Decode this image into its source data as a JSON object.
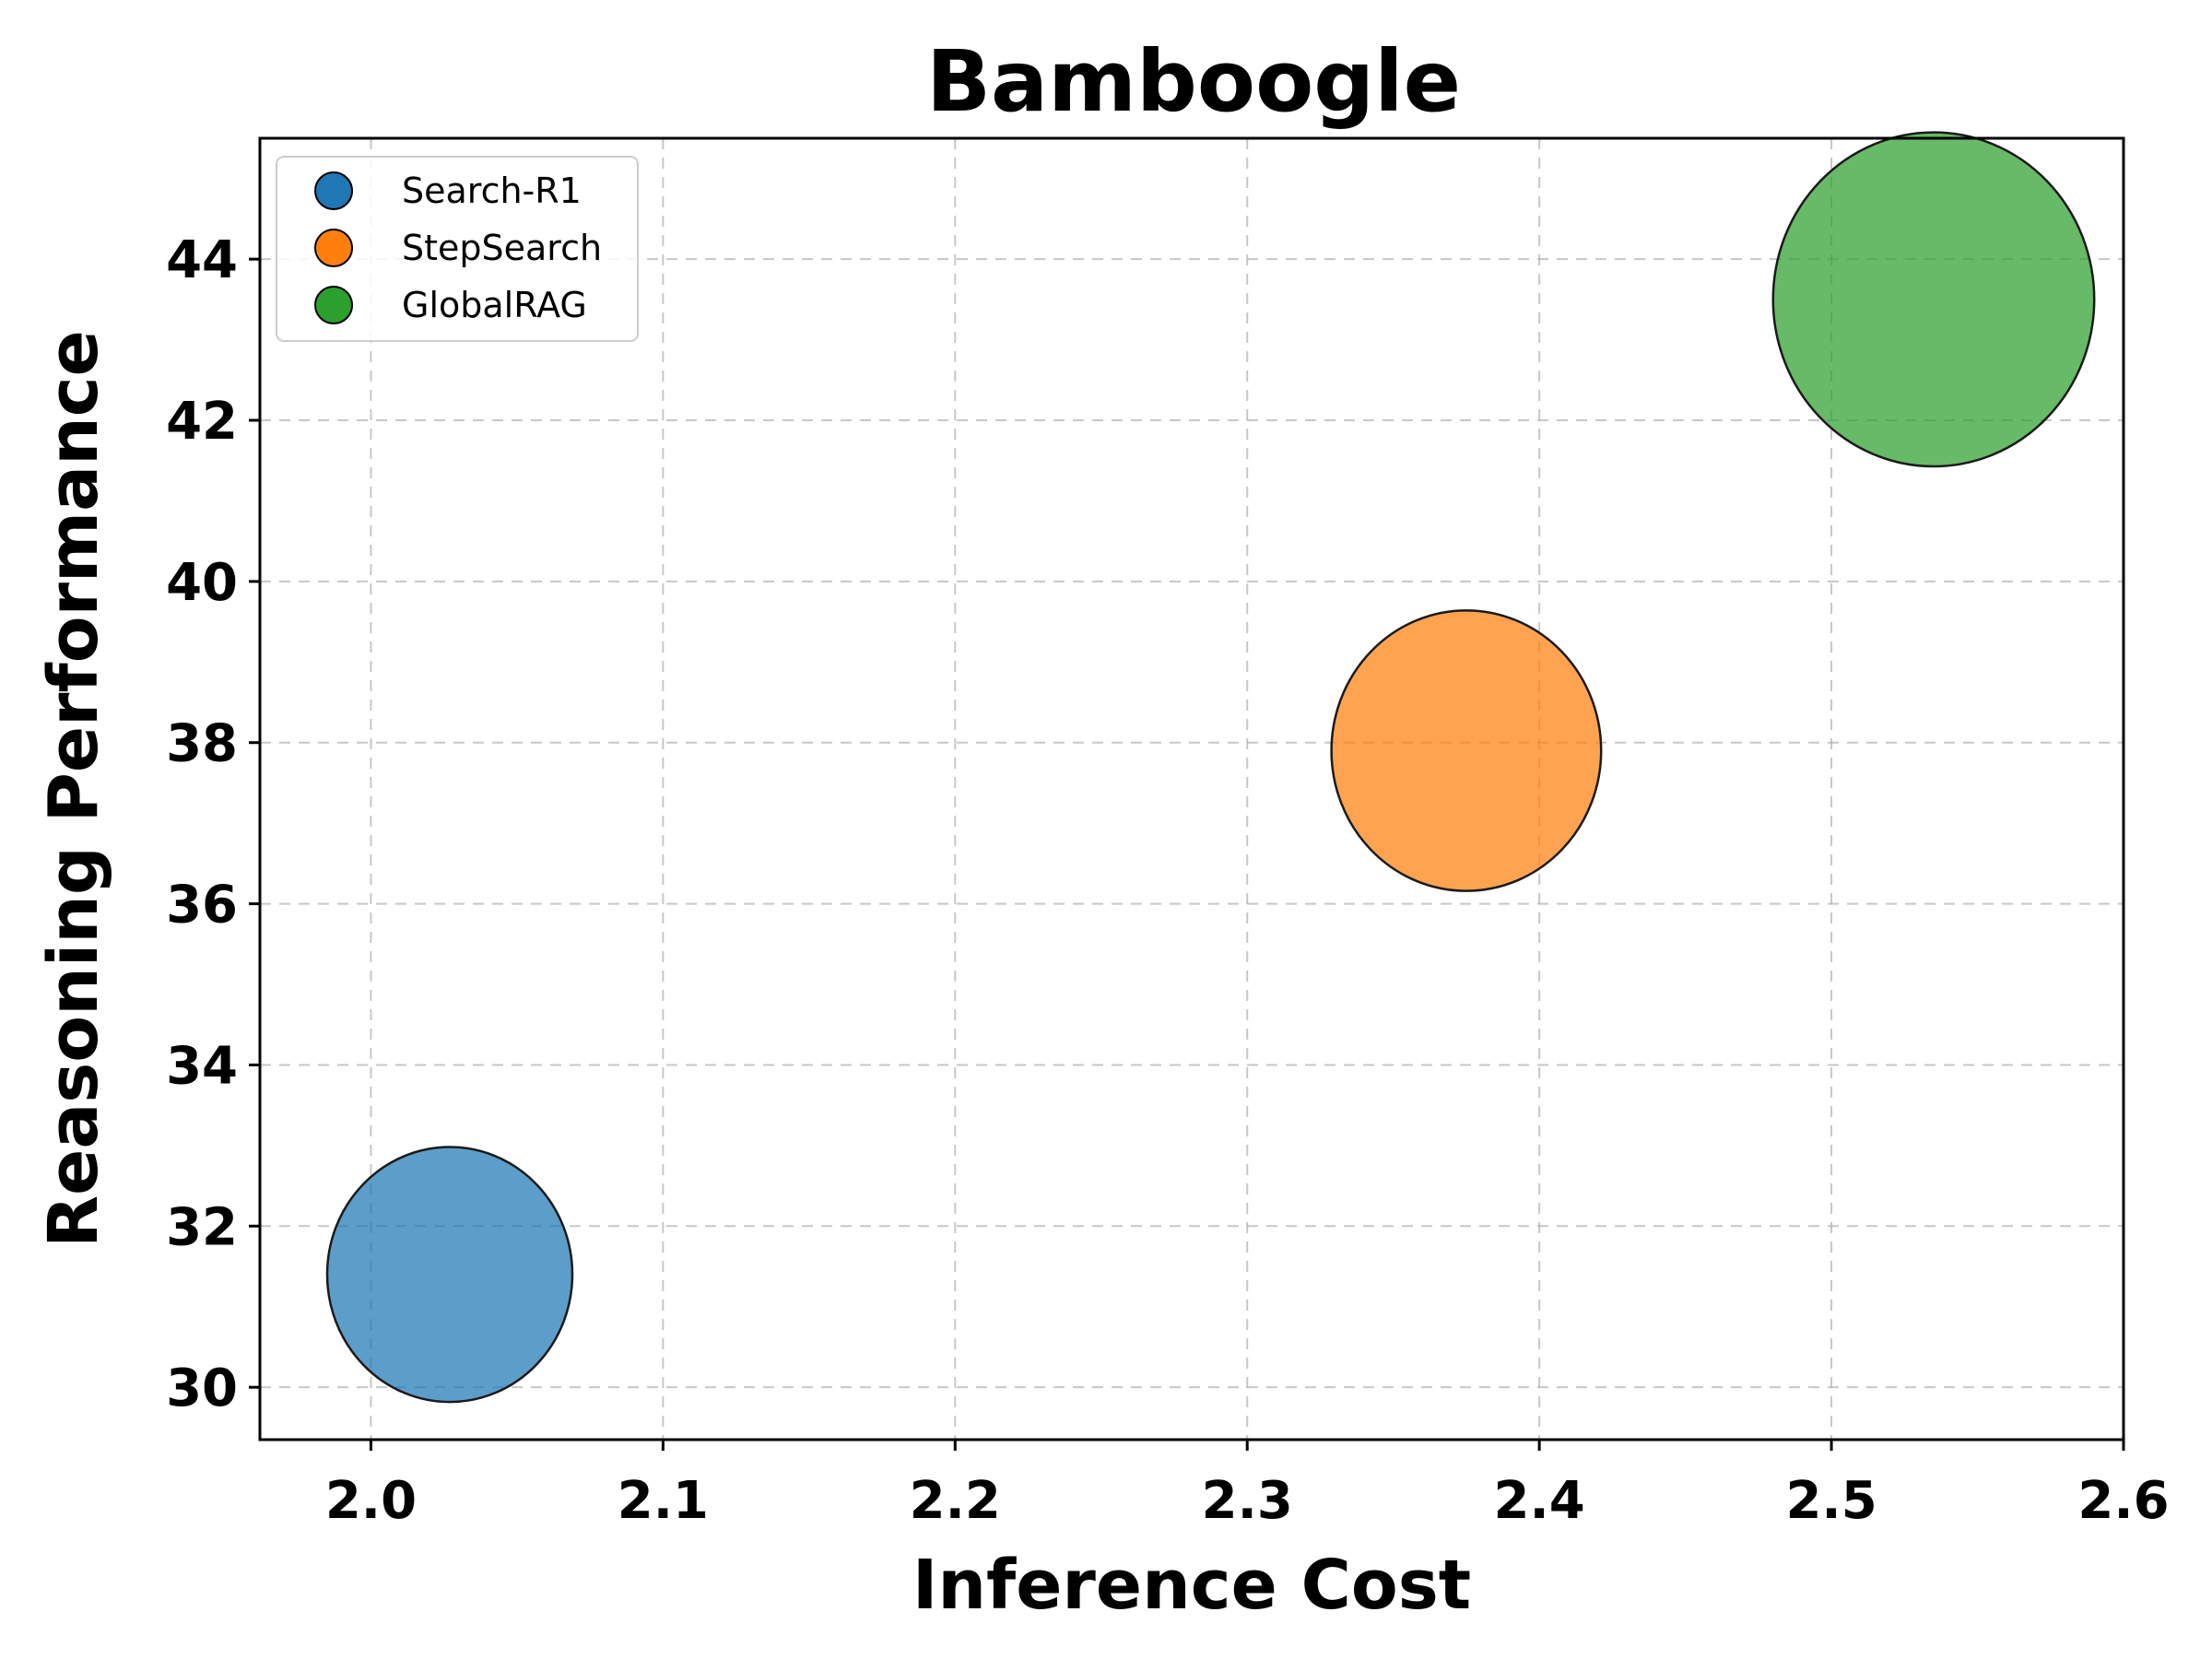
{
  "chart_data": {
    "type": "scatter",
    "title": "Bamboogle",
    "xlabel": "Inference Cost",
    "ylabel": "Reasoning Performance",
    "xlim": [
      1.962,
      2.6
    ],
    "ylim": [
      29.35,
      45.5
    ],
    "xticks": [
      "2.0",
      "2.1",
      "2.2",
      "2.3",
      "2.4",
      "2.5",
      "2.6"
    ],
    "yticks": [
      "30",
      "32",
      "34",
      "36",
      "38",
      "40",
      "42",
      "44"
    ],
    "grid": true,
    "legend_position": "upper-left",
    "series": [
      {
        "name": "Search-R1",
        "x": 2.027,
        "y": 31.4,
        "color": "#1f77b4",
        "relative_size": 1.0
      },
      {
        "name": "StepSearch",
        "x": 2.375,
        "y": 37.9,
        "color": "#ff7f0e",
        "relative_size": 1.1
      },
      {
        "name": "GlobalRAG",
        "x": 2.535,
        "y": 43.5,
        "color": "#2ca02c",
        "relative_size": 1.31
      }
    ]
  }
}
